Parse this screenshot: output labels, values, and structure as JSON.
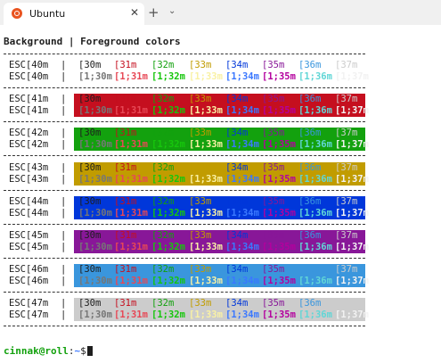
{
  "tab": {
    "title": "Ubuntu",
    "icon": "ubuntu-logo-icon",
    "close": "✕"
  },
  "toolbar": {
    "new_tab": "+",
    "dropdown": "⌄"
  },
  "heading": "Background | Foreground colors",
  "separator": "------------------------------------------------------------",
  "pipe": "|",
  "fg_codes": [
    "[30m",
    "[31m",
    "[32m",
    "[33m",
    "[34m",
    "[35m",
    "[36m",
    "[37m"
  ],
  "fg_bold_codes": [
    "[1;30m",
    "[1;31m",
    "[1;32m",
    "[1;33m",
    "[1;34m",
    "[1;35m",
    "[1;36m",
    "[1;37m"
  ],
  "fg_colors": [
    "#1e1e1e",
    "#c50f1f",
    "#13a10e",
    "#c19c00",
    "#0037da",
    "#881798",
    "#3a96dd",
    "#cccccc"
  ],
  "fg_bright_colors": [
    "#767676",
    "#e74856",
    "#16c60c",
    "#f9f1a5",
    "#3b78ff",
    "#b4009e",
    "#61d6d6",
    "#f2f2f2"
  ],
  "groups": [
    {
      "esc": "ESC[40m",
      "bg": null
    },
    {
      "esc": "ESC[41m",
      "bg": "#c50f1f"
    },
    {
      "esc": "ESC[42m",
      "bg": "#13a10e"
    },
    {
      "esc": "ESC[43m",
      "bg": "#c19c00"
    },
    {
      "esc": "ESC[44m",
      "bg": "#0037da"
    },
    {
      "esc": "ESC[45m",
      "bg": "#881798"
    },
    {
      "esc": "ESC[46m",
      "bg": "#3a96dd"
    },
    {
      "esc": "ESC[47m",
      "bg": "#cccccc"
    }
  ],
  "prompt": {
    "user": "cinnak@roll",
    "sep": ":",
    "path": "~",
    "symbol": "$"
  }
}
